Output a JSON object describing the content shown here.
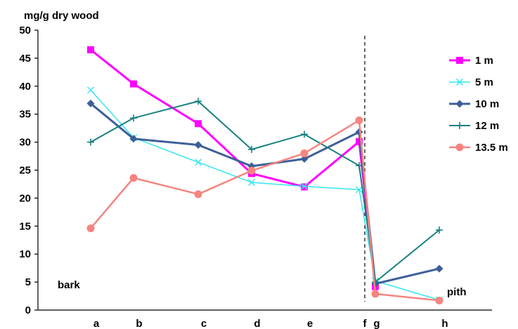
{
  "chart_data": {
    "type": "line",
    "ylabel": "mg/g dry wood",
    "ylim": [
      0,
      50
    ],
    "yticks": [
      0,
      5,
      10,
      15,
      20,
      25,
      30,
      35,
      40,
      45,
      50
    ],
    "categories": [
      "a",
      "b",
      "c",
      "d",
      "e",
      "f",
      "g",
      "h"
    ],
    "annotations": {
      "left": "bark",
      "right": "pith"
    },
    "divider_after": "f",
    "legend_position": "right",
    "grid": false,
    "series": [
      {
        "name": "1 m",
        "color": "#FF00FF",
        "marker": "square",
        "width": 3,
        "values": [
          46.5,
          40.4,
          33.3,
          24.4,
          22.0,
          30.1,
          4.2,
          null
        ]
      },
      {
        "name": "5 m",
        "color": "#33E6F0",
        "marker": "x",
        "width": 1.5,
        "values": [
          39.3,
          30.8,
          26.4,
          22.8,
          22.1,
          21.5,
          5.2,
          1.8
        ]
      },
      {
        "name": "10 m",
        "color": "#3D5F99",
        "marker": "diamond",
        "width": 3,
        "values": [
          36.9,
          30.6,
          29.5,
          25.7,
          27.0,
          31.8,
          4.7,
          7.4
        ]
      },
      {
        "name": "12 m",
        "color": "#168080",
        "marker": "plus",
        "width": 2,
        "values": [
          30.0,
          34.3,
          37.3,
          28.7,
          31.4,
          25.8,
          5.0,
          14.3
        ]
      },
      {
        "name": "13.5 m",
        "color": "#F5857F",
        "marker": "circle",
        "width": 2.5,
        "values": [
          14.6,
          23.6,
          20.7,
          24.9,
          28.0,
          33.9,
          2.9,
          1.7
        ]
      }
    ]
  }
}
